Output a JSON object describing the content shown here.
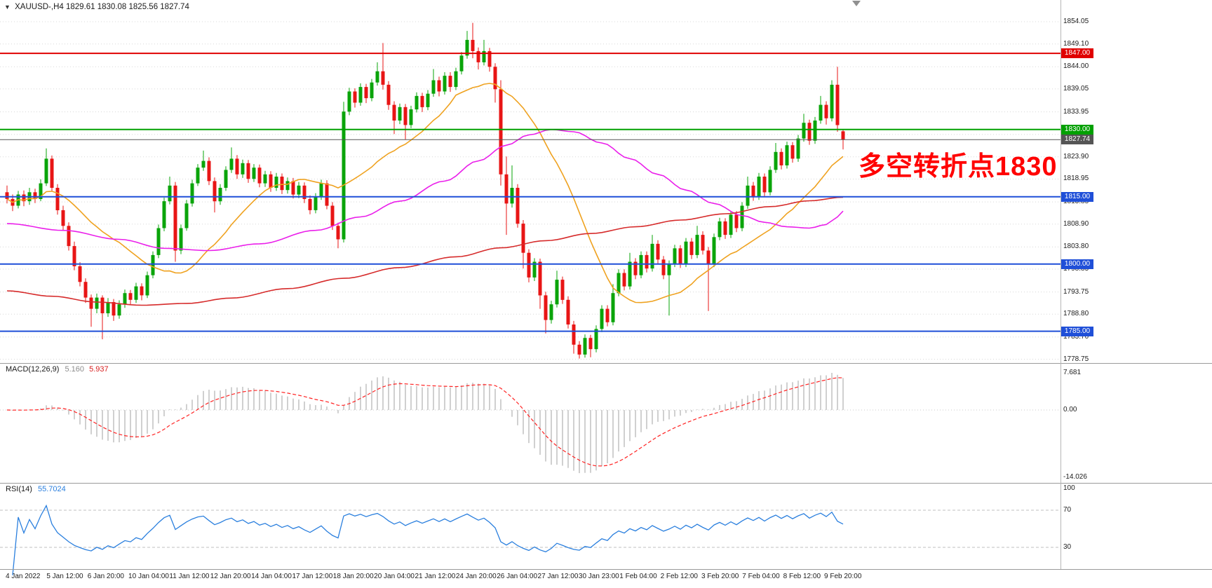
{
  "window": {
    "dropdown_arrow": "▼",
    "title": "XAUUSD-,H4",
    "ohlc_display": "1829.61 1830.08 1825.56 1827.74"
  },
  "annotation": {
    "text": "多空转折点1830",
    "color": "#ff0000"
  },
  "hlines": [
    {
      "label": "1847.00",
      "price": 1847.0,
      "color": "#e00000",
      "width": 2
    },
    {
      "label": "1830.00",
      "price": 1830.0,
      "color": "#00a000",
      "width": 2
    },
    {
      "label": "1827.74",
      "price": 1827.74,
      "color": "#555555",
      "width": 1,
      "current": true
    },
    {
      "label": "1815.00",
      "price": 1815.0,
      "color": "#1f4fd8",
      "width": 2
    },
    {
      "label": "1800.00",
      "price": 1800.0,
      "color": "#1f4fd8",
      "width": 2
    },
    {
      "label": "1785.00",
      "price": 1785.0,
      "color": "#1f4fd8",
      "width": 2
    }
  ],
  "price_axis": {
    "ticks": [
      {
        "label": "1854.05",
        "price": 1854.05
      },
      {
        "label": "1849.10",
        "price": 1849.1
      },
      {
        "label": "1844.00",
        "price": 1844.0
      },
      {
        "label": "1839.05",
        "price": 1839.05
      },
      {
        "label": "1833.95",
        "price": 1833.95
      },
      {
        "label": "1828.90",
        "price": 1828.9
      },
      {
        "label": "1823.90",
        "price": 1823.9
      },
      {
        "label": "1818.95",
        "price": 1818.95
      },
      {
        "label": "1813.85",
        "price": 1813.85
      },
      {
        "label": "1808.90",
        "price": 1808.9
      },
      {
        "label": "1803.80",
        "price": 1803.8
      },
      {
        "label": "1798.85",
        "price": 1798.85
      },
      {
        "label": "1793.75",
        "price": 1793.75
      },
      {
        "label": "1788.80",
        "price": 1788.8
      },
      {
        "label": "1783.70",
        "price": 1783.7
      },
      {
        "label": "1778.75",
        "price": 1778.75
      }
    ]
  },
  "time_axis": {
    "labels": [
      "4 Jan 2022",
      "5 Jan 12:00",
      "6 Jan 20:00",
      "10 Jan 04:00",
      "11 Jan 12:00",
      "12 Jan 20:00",
      "14 Jan 04:00",
      "17 Jan 12:00",
      "18 Jan 20:00",
      "20 Jan 04:00",
      "21 Jan 12:00",
      "24 Jan 20:00",
      "26 Jan 04:00",
      "27 Jan 12:00",
      "30 Jan 23:00",
      "1 Feb 04:00",
      "2 Feb 12:00",
      "3 Feb 20:00",
      "7 Feb 04:00",
      "8 Feb 12:00",
      "9 Feb 20:00"
    ]
  },
  "indicators": {
    "macd": {
      "label": "MACD(12,26,9)",
      "value_main": "5.160",
      "value_signal": "5.937",
      "axis_labels": [
        "7.681",
        "0.00",
        "-14.026"
      ],
      "hist_color": "#b0b0b0",
      "signal_color": "#ff2222"
    },
    "rsi": {
      "label": "RSI(14)",
      "value": "55.7024",
      "axis_labels": [
        "100",
        "70",
        "30"
      ],
      "levels": [
        70,
        30
      ],
      "line_color": "#2a7fde"
    }
  },
  "chart_data": {
    "type": "candlestick",
    "symbol": "XAUUSD-",
    "timeframe": "H4",
    "ylim": [
      1777.9,
      1858.9
    ],
    "up_color": "#0aa40a",
    "down_color": "#e81515",
    "ohlc": [
      [
        1816.0,
        1817.5,
        1813.5,
        1814.5
      ],
      [
        1814.5,
        1815.5,
        1811.8,
        1813.0
      ],
      [
        1813.0,
        1816.3,
        1812.4,
        1815.5
      ],
      [
        1815.5,
        1816.4,
        1812.9,
        1814.0
      ],
      [
        1814.0,
        1817.0,
        1813.2,
        1816.0
      ],
      [
        1816.0,
        1816.8,
        1813.6,
        1814.5
      ],
      [
        1814.5,
        1818.9,
        1814.0,
        1818.0
      ],
      [
        1818.0,
        1825.8,
        1817.4,
        1823.5
      ],
      [
        1823.5,
        1824.2,
        1816.2,
        1817.0
      ],
      [
        1817.0,
        1817.8,
        1811.0,
        1812.0
      ],
      [
        1812.0,
        1813.0,
        1807.6,
        1808.5
      ],
      [
        1808.5,
        1809.3,
        1803.0,
        1804.0
      ],
      [
        1804.0,
        1805.0,
        1798.6,
        1799.5
      ],
      [
        1799.5,
        1800.4,
        1795.0,
        1796.0
      ],
      [
        1796.0,
        1796.8,
        1791.3,
        1792.5
      ],
      [
        1792.5,
        1793.2,
        1786.0,
        1790.0
      ],
      [
        1790.0,
        1793.4,
        1789.0,
        1792.5
      ],
      [
        1792.5,
        1793.0,
        1783.2,
        1789.0
      ],
      [
        1789.0,
        1792.4,
        1788.2,
        1791.5
      ],
      [
        1791.5,
        1792.2,
        1787.3,
        1788.5
      ],
      [
        1788.5,
        1791.9,
        1787.8,
        1791.0
      ],
      [
        1791.0,
        1794.3,
        1790.2,
        1793.5
      ],
      [
        1793.5,
        1794.2,
        1790.8,
        1792.0
      ],
      [
        1792.0,
        1795.8,
        1791.3,
        1795.0
      ],
      [
        1795.0,
        1795.7,
        1791.9,
        1793.0
      ],
      [
        1793.0,
        1798.3,
        1792.4,
        1797.5
      ],
      [
        1797.5,
        1802.8,
        1796.8,
        1802.0
      ],
      [
        1802.0,
        1808.8,
        1801.3,
        1808.0
      ],
      [
        1808.0,
        1814.8,
        1807.3,
        1814.0
      ],
      [
        1814.0,
        1819.5,
        1813.3,
        1817.5
      ],
      [
        1817.5,
        1818.3,
        1800.5,
        1803.0
      ],
      [
        1803.0,
        1808.8,
        1802.2,
        1808.0
      ],
      [
        1808.0,
        1814.3,
        1807.4,
        1813.5
      ],
      [
        1813.5,
        1818.8,
        1812.8,
        1818.0
      ],
      [
        1818.0,
        1822.3,
        1817.4,
        1821.5
      ],
      [
        1821.5,
        1825.3,
        1820.8,
        1823.0
      ],
      [
        1823.0,
        1823.8,
        1817.6,
        1818.5
      ],
      [
        1818.5,
        1819.3,
        1811.5,
        1814.0
      ],
      [
        1814.0,
        1817.8,
        1813.2,
        1817.0
      ],
      [
        1817.0,
        1821.8,
        1816.3,
        1821.0
      ],
      [
        1821.0,
        1826.0,
        1820.3,
        1823.5
      ],
      [
        1823.5,
        1824.3,
        1819.0,
        1820.0
      ],
      [
        1820.0,
        1823.3,
        1819.2,
        1822.5
      ],
      [
        1822.5,
        1823.2,
        1818.1,
        1819.0
      ],
      [
        1819.0,
        1822.3,
        1818.3,
        1821.5
      ],
      [
        1821.5,
        1822.2,
        1817.1,
        1818.0
      ],
      [
        1818.0,
        1820.8,
        1817.2,
        1820.0
      ],
      [
        1820.0,
        1820.7,
        1816.1,
        1817.0
      ],
      [
        1817.0,
        1820.3,
        1816.3,
        1819.5
      ],
      [
        1819.5,
        1820.2,
        1815.6,
        1816.5
      ],
      [
        1816.5,
        1819.3,
        1815.7,
        1818.5
      ],
      [
        1818.5,
        1819.2,
        1814.6,
        1815.5
      ],
      [
        1815.5,
        1818.3,
        1814.7,
        1817.5
      ],
      [
        1817.5,
        1818.2,
        1813.6,
        1814.5
      ],
      [
        1814.5,
        1815.3,
        1811.1,
        1812.0
      ],
      [
        1812.0,
        1815.8,
        1811.3,
        1815.0
      ],
      [
        1815.0,
        1818.8,
        1814.3,
        1818.0
      ],
      [
        1818.0,
        1818.7,
        1812.2,
        1813.0
      ],
      [
        1813.0,
        1813.8,
        1807.6,
        1808.5
      ],
      [
        1808.5,
        1809.2,
        1803.5,
        1805.5
      ],
      [
        1805.5,
        1836.2,
        1804.8,
        1834.0
      ],
      [
        1834.0,
        1839.3,
        1833.2,
        1838.5
      ],
      [
        1838.5,
        1839.2,
        1834.9,
        1836.0
      ],
      [
        1836.0,
        1840.3,
        1835.3,
        1839.5
      ],
      [
        1839.5,
        1840.2,
        1835.9,
        1837.0
      ],
      [
        1837.0,
        1841.3,
        1836.3,
        1840.5
      ],
      [
        1840.5,
        1845.0,
        1839.8,
        1843.0
      ],
      [
        1843.0,
        1849.3,
        1838.9,
        1840.0
      ],
      [
        1840.0,
        1840.8,
        1834.4,
        1835.5
      ],
      [
        1835.5,
        1836.3,
        1829.0,
        1832.0
      ],
      [
        1832.0,
        1835.8,
        1831.2,
        1835.0
      ],
      [
        1835.0,
        1835.7,
        1827.8,
        1831.0
      ],
      [
        1831.0,
        1835.3,
        1830.3,
        1834.5
      ],
      [
        1834.5,
        1838.3,
        1833.8,
        1837.5
      ],
      [
        1837.5,
        1838.2,
        1833.9,
        1835.0
      ],
      [
        1835.0,
        1838.8,
        1834.3,
        1838.0
      ],
      [
        1838.0,
        1843.5,
        1837.3,
        1841.0
      ],
      [
        1841.0,
        1841.8,
        1837.4,
        1838.5
      ],
      [
        1838.5,
        1842.8,
        1837.8,
        1842.0
      ],
      [
        1842.0,
        1842.8,
        1838.4,
        1839.5
      ],
      [
        1839.5,
        1843.8,
        1838.8,
        1843.0
      ],
      [
        1843.0,
        1847.3,
        1842.3,
        1846.5
      ],
      [
        1846.5,
        1852.0,
        1845.8,
        1850.0
      ],
      [
        1850.0,
        1853.8,
        1845.9,
        1847.5
      ],
      [
        1847.5,
        1848.3,
        1843.4,
        1845.0
      ],
      [
        1845.0,
        1850.0,
        1844.3,
        1847.5
      ],
      [
        1847.5,
        1848.2,
        1842.9,
        1844.0
      ],
      [
        1844.0,
        1844.8,
        1836.0,
        1839.0
      ],
      [
        1839.0,
        1841.0,
        1817.5,
        1820.0
      ],
      [
        1820.0,
        1824.0,
        1806.5,
        1813.5
      ],
      [
        1813.5,
        1822.0,
        1812.6,
        1817.0
      ],
      [
        1817.0,
        1817.8,
        1808.1,
        1809.0
      ],
      [
        1809.0,
        1809.8,
        1799.0,
        1802.5
      ],
      [
        1802.5,
        1803.3,
        1795.9,
        1797.0
      ],
      [
        1797.0,
        1801.3,
        1796.2,
        1800.5
      ],
      [
        1800.5,
        1801.2,
        1790.0,
        1793.0
      ],
      [
        1793.0,
        1793.8,
        1784.5,
        1787.5
      ],
      [
        1787.5,
        1791.8,
        1786.7,
        1791.0
      ],
      [
        1791.0,
        1798.5,
        1790.3,
        1796.5
      ],
      [
        1796.5,
        1797.2,
        1791.1,
        1792.0
      ],
      [
        1792.0,
        1792.8,
        1785.6,
        1786.5
      ],
      [
        1786.5,
        1787.3,
        1780.0,
        1782.0
      ],
      [
        1782.0,
        1782.8,
        1778.9,
        1779.8
      ],
      [
        1779.8,
        1784.3,
        1779.1,
        1783.5
      ],
      [
        1783.5,
        1784.2,
        1779.2,
        1781.0
      ],
      [
        1781.0,
        1786.3,
        1780.3,
        1785.5
      ],
      [
        1785.5,
        1790.8,
        1784.8,
        1790.0
      ],
      [
        1790.0,
        1790.8,
        1786.1,
        1787.0
      ],
      [
        1787.0,
        1795.5,
        1786.3,
        1793.5
      ],
      [
        1793.5,
        1798.8,
        1792.8,
        1798.0
      ],
      [
        1798.0,
        1798.8,
        1794.1,
        1795.0
      ],
      [
        1795.0,
        1802.5,
        1794.3,
        1800.5
      ],
      [
        1800.5,
        1801.3,
        1796.6,
        1797.5
      ],
      [
        1797.5,
        1802.8,
        1796.8,
        1802.0
      ],
      [
        1802.0,
        1802.8,
        1798.1,
        1799.0
      ],
      [
        1799.0,
        1806.5,
        1798.3,
        1804.5
      ],
      [
        1804.5,
        1805.3,
        1800.1,
        1801.0
      ],
      [
        1801.0,
        1801.8,
        1796.6,
        1797.5
      ],
      [
        1797.5,
        1800.8,
        1788.5,
        1800.0
      ],
      [
        1800.0,
        1804.3,
        1799.3,
        1803.5
      ],
      [
        1803.5,
        1804.2,
        1799.1,
        1800.0
      ],
      [
        1800.0,
        1805.8,
        1799.3,
        1805.0
      ],
      [
        1805.0,
        1805.8,
        1801.1,
        1802.0
      ],
      [
        1802.0,
        1808.5,
        1801.3,
        1806.5
      ],
      [
        1806.5,
        1807.3,
        1802.1,
        1803.0
      ],
      [
        1803.0,
        1803.8,
        1789.5,
        1800.0
      ],
      [
        1800.0,
        1806.8,
        1799.3,
        1806.0
      ],
      [
        1806.0,
        1810.3,
        1805.3,
        1809.5
      ],
      [
        1809.5,
        1810.2,
        1805.6,
        1806.5
      ],
      [
        1806.5,
        1811.8,
        1805.8,
        1811.0
      ],
      [
        1811.0,
        1811.8,
        1807.1,
        1808.0
      ],
      [
        1808.0,
        1813.8,
        1807.3,
        1813.0
      ],
      [
        1813.0,
        1819.5,
        1812.3,
        1817.5
      ],
      [
        1817.5,
        1818.3,
        1814.1,
        1815.0
      ],
      [
        1815.0,
        1820.3,
        1814.3,
        1819.5
      ],
      [
        1819.5,
        1820.2,
        1815.1,
        1816.0
      ],
      [
        1816.0,
        1821.8,
        1815.3,
        1821.0
      ],
      [
        1821.0,
        1827.0,
        1820.3,
        1825.0
      ],
      [
        1825.0,
        1825.8,
        1821.1,
        1822.0
      ],
      [
        1822.0,
        1827.3,
        1821.3,
        1826.5
      ],
      [
        1826.5,
        1827.2,
        1822.6,
        1823.5
      ],
      [
        1823.5,
        1828.8,
        1822.8,
        1828.0
      ],
      [
        1828.0,
        1833.5,
        1827.3,
        1831.5
      ],
      [
        1831.5,
        1832.2,
        1826.6,
        1827.5
      ],
      [
        1827.5,
        1832.8,
        1826.8,
        1832.0
      ],
      [
        1832.0,
        1837.5,
        1831.3,
        1835.5
      ],
      [
        1835.5,
        1836.3,
        1831.1,
        1832.5
      ],
      [
        1832.5,
        1841.0,
        1831.8,
        1840.0
      ],
      [
        1840.0,
        1844.0,
        1829.5,
        1831.0
      ],
      [
        1829.61,
        1830.08,
        1825.56,
        1827.74
      ]
    ],
    "overlays": [
      {
        "name": "ma-fast",
        "type": "sma",
        "period": 21,
        "color": "#efa220"
      },
      {
        "name": "ma-mid",
        "type": "waypoints",
        "color": "#ea1fea",
        "points": [
          [
            0,
            1809
          ],
          [
            10,
            1807.5
          ],
          [
            20,
            1805.5
          ],
          [
            28,
            1803.5
          ],
          [
            36,
            1803
          ],
          [
            45,
            1804.5
          ],
          [
            55,
            1807.5
          ],
          [
            63,
            1810.5
          ],
          [
            70,
            1814
          ],
          [
            78,
            1818.5
          ],
          [
            84,
            1823
          ],
          [
            89,
            1826.5
          ],
          [
            93,
            1828.8
          ],
          [
            97,
            1830
          ],
          [
            101,
            1829.5
          ],
          [
            106,
            1827
          ],
          [
            111,
            1823.5
          ],
          [
            116,
            1820
          ],
          [
            121,
            1816.5
          ],
          [
            126,
            1813.5
          ],
          [
            131,
            1810.8
          ],
          [
            135,
            1809.3
          ],
          [
            139,
            1808.3
          ],
          [
            143,
            1808
          ],
          [
            146,
            1808.8
          ],
          [
            148,
            1810.5
          ],
          [
            149,
            1811.8
          ]
        ]
      },
      {
        "name": "ma-slow",
        "type": "waypoints",
        "color": "#d62b2b",
        "points": [
          [
            0,
            1794
          ],
          [
            8,
            1792.8
          ],
          [
            16,
            1791.5
          ],
          [
            24,
            1790.8
          ],
          [
            32,
            1791.2
          ],
          [
            40,
            1792.4
          ],
          [
            50,
            1794.5
          ],
          [
            60,
            1796.8
          ],
          [
            70,
            1799.2
          ],
          [
            80,
            1801.6
          ],
          [
            88,
            1803.6
          ],
          [
            96,
            1805.2
          ],
          [
            104,
            1806.8
          ],
          [
            112,
            1808.3
          ],
          [
            120,
            1809.8
          ],
          [
            128,
            1811.2
          ],
          [
            136,
            1812.8
          ],
          [
            143,
            1814.1
          ],
          [
            149,
            1814.9
          ]
        ]
      }
    ]
  }
}
